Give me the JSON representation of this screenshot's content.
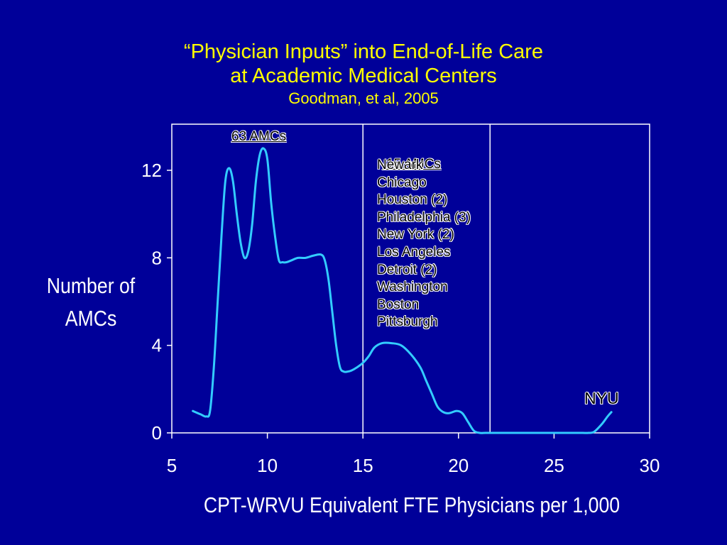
{
  "chart_data": {
    "type": "line",
    "title": "“Physician Inputs” into End-of-Life Care",
    "title_line2": "at Academic Medical Centers",
    "subtitle": "Goodman, et al, 2005",
    "xlabel": "CPT-WRVU Equivalent FTE Physicians per 1,000",
    "ylabel_line1": "Number of",
    "ylabel_line2": "AMCs",
    "xlim": [
      5,
      30
    ],
    "ylim": [
      0,
      14
    ],
    "x_ticks": [
      "5",
      "10",
      "15",
      "20",
      "25",
      "30"
    ],
    "y_ticks": [
      "0",
      "4",
      "8",
      "12"
    ],
    "grid": false,
    "vertical_lines_x": [
      15,
      21.65
    ],
    "series": [
      {
        "color": "#33ccff",
        "x": [
          6.1,
          6.5,
          6.8,
          7.0,
          7.2,
          7.4,
          7.6,
          7.8,
          8.0,
          8.2,
          8.4,
          8.6,
          8.8,
          9.0,
          9.2,
          9.4,
          9.6,
          9.8,
          10.0,
          10.2,
          10.4,
          10.6,
          10.8,
          11.0,
          11.3,
          11.6,
          12.0,
          12.4,
          12.8,
          13.0,
          13.2,
          13.4,
          13.6,
          13.8,
          14.0,
          14.2,
          14.4,
          14.7,
          15.0,
          15.3,
          15.6,
          16.0,
          16.5,
          17.0,
          17.5,
          18.0,
          18.3,
          18.6,
          18.9,
          19.2,
          19.5,
          19.9,
          20.2,
          20.5,
          20.8,
          21.1,
          21.4,
          21.8,
          22.5,
          24.0,
          25.0,
          26.0,
          26.5,
          26.8,
          27.1,
          27.5,
          27.8,
          28.0
        ],
        "y": [
          1.0,
          0.85,
          0.75,
          1.0,
          3.0,
          6.0,
          9.0,
          11.5,
          12.1,
          11.5,
          10.0,
          8.7,
          8.0,
          8.3,
          9.5,
          11.5,
          12.7,
          13.0,
          12.5,
          10.5,
          9.0,
          7.9,
          7.8,
          7.8,
          7.9,
          8.0,
          8.0,
          8.1,
          8.15,
          7.9,
          7.0,
          5.5,
          4.0,
          3.0,
          2.8,
          2.8,
          2.85,
          3.0,
          3.2,
          3.5,
          3.9,
          4.1,
          4.1,
          4.0,
          3.6,
          3.0,
          2.4,
          1.8,
          1.2,
          0.95,
          0.9,
          1.0,
          0.9,
          0.5,
          0.1,
          0.0,
          0.0,
          0.0,
          0.0,
          0.0,
          0.0,
          0.0,
          0.0,
          0.0,
          0.05,
          0.4,
          0.75,
          0.95
        ]
      }
    ],
    "annotations": {
      "group1": "63 AMCs",
      "group2": " 15 AMCs",
      "cities": [
        "Newark",
        "Chicago",
        "Houston (2)",
        "Philadelphia (3)",
        "New York (2)",
        "Los Angeles",
        "Detroit (2)",
        "Washington",
        "Boston",
        "Pittsburgh"
      ],
      "outlier": "NYU"
    }
  }
}
